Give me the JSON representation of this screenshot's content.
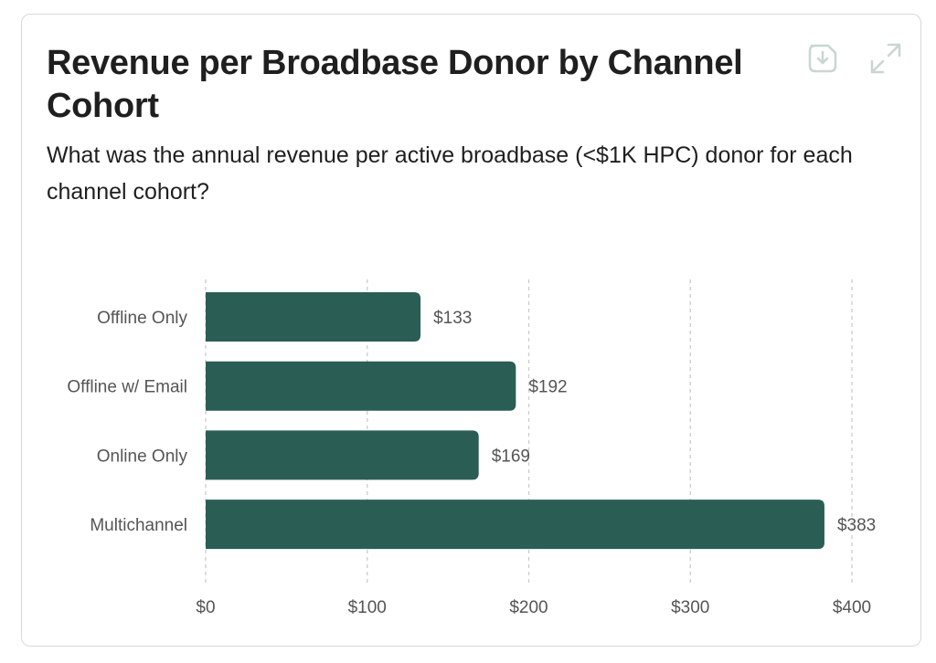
{
  "card": {
    "title": "Revenue per Broadbase Donor by Channel Cohort",
    "subtitle": "What was the annual revenue per active broadbase (<$1K HPC) donor for each channel cohort?",
    "actions": {
      "download_icon": "download-icon",
      "expand_icon": "expand-icon"
    }
  },
  "colors": {
    "bar": "#2a5e55",
    "grid": "#cccccc",
    "text": "#555555",
    "icon": "#c9d6d2"
  },
  "chart_data": {
    "type": "bar",
    "orientation": "horizontal",
    "categories": [
      "Offline Only",
      "Offline w/ Email",
      "Online Only",
      "Multichannel"
    ],
    "values": [
      133,
      192,
      169,
      383
    ],
    "value_labels": [
      "$133",
      "$192",
      "$169",
      "$383"
    ],
    "xlim": [
      0,
      400
    ],
    "x_ticks": [
      0,
      100,
      200,
      300,
      400
    ],
    "x_tick_labels": [
      "$0",
      "$100",
      "$200",
      "$300",
      "$400"
    ],
    "grid": "vertical-dashed",
    "legend": "none"
  }
}
